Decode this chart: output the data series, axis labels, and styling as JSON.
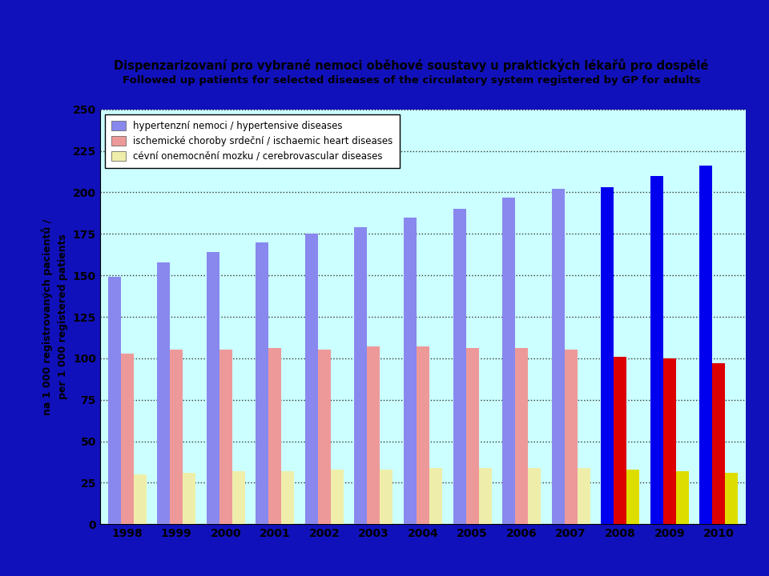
{
  "title_line1": "Dispenzarizovaní pro vybrané nemoci oběhové soustavy u praktických lékařů pro dospělé",
  "title_line2": "Followed up patients for selected diseases of the circulatory system registered by GP for adults",
  "ylabel_line1": "na 1 000 registrovaných pacientů /",
  "ylabel_line2": "per 1 000 registered patients",
  "years": [
    1998,
    1999,
    2000,
    2001,
    2002,
    2003,
    2004,
    2005,
    2006,
    2007,
    2008,
    2009,
    2010
  ],
  "hypertensive": [
    149,
    158,
    164,
    170,
    175,
    179,
    185,
    190,
    197,
    202,
    203,
    210,
    216
  ],
  "ischaemic": [
    103,
    105,
    105,
    106,
    105,
    107,
    107,
    106,
    106,
    105,
    101,
    100,
    97
  ],
  "cerebrovascular": [
    30,
    31,
    32,
    32,
    33,
    33,
    34,
    34,
    34,
    34,
    33,
    32,
    31
  ],
  "color_hypertensive_dark": "#0000EE",
  "color_hypertensive_light": "#8888EE",
  "color_ischaemic_dark": "#DD0000",
  "color_ischaemic_light": "#EE9999",
  "color_cerebrovascular_dark": "#DDDD00",
  "color_cerebrovascular_light": "#EEEEAA",
  "background_outer": "#1111BB",
  "background_inner": "#CCFFFF",
  "dark_from_year": 2008,
  "legend_labels": [
    "hypertenzní nemoci / hypertensive diseases",
    "ischemické choroby srdeční / ischaemic heart diseases",
    "cévní onemocnění mozku / cerebrovascular diseases"
  ],
  "ylim": [
    0,
    250
  ],
  "yticks": [
    0,
    25,
    50,
    75,
    100,
    125,
    150,
    175,
    200,
    225,
    250
  ]
}
